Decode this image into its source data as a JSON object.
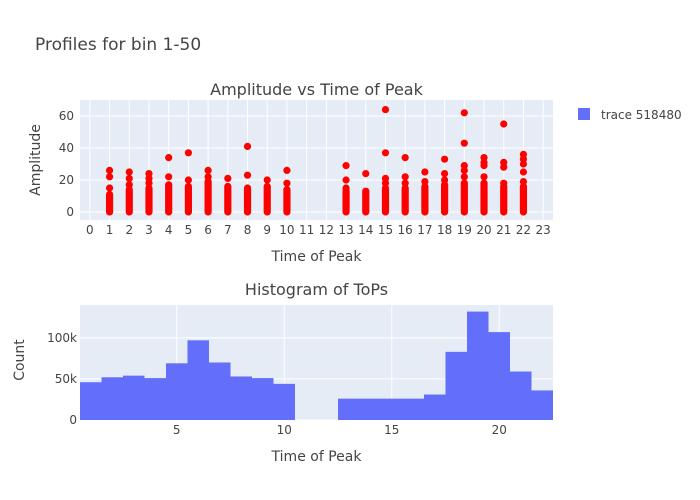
{
  "figure": {
    "title": "Profiles for bin 1-50",
    "legend": {
      "label": "trace 518480",
      "color": "#636efa",
      "placement": "top-right"
    }
  },
  "chart_data": [
    {
      "type": "scatter",
      "title": "Amplitude vs Time of Peak",
      "xlabel": "Time of Peak",
      "ylabel": "Amplitude",
      "xlim": [
        -0.5,
        23.5
      ],
      "ylim": [
        -5,
        70
      ],
      "xticks": [
        "0",
        "1",
        "2",
        "3",
        "4",
        "5",
        "6",
        "7",
        "8",
        "9",
        "10",
        "11",
        "12",
        "13",
        "14",
        "15",
        "16",
        "17",
        "18",
        "19",
        "20",
        "21",
        "22",
        "23"
      ],
      "yticks": [
        "0",
        "20",
        "40",
        "60"
      ],
      "grid": true,
      "marker_color": "#ff0000",
      "series": [
        {
          "name": "trace 518480",
          "columns": [
            {
              "x": 1,
              "min": 0,
              "dense_max": 11,
              "outliers": [
                15,
                22,
                26
              ]
            },
            {
              "x": 2,
              "min": 0,
              "dense_max": 14,
              "outliers": [
                17,
                21,
                25
              ]
            },
            {
              "x": 3,
              "min": 0,
              "dense_max": 15,
              "outliers": [
                18,
                21,
                24
              ]
            },
            {
              "x": 4,
              "min": 0,
              "dense_max": 17,
              "outliers": [
                22,
                34
              ]
            },
            {
              "x": 5,
              "min": 0,
              "dense_max": 16,
              "outliers": [
                20,
                37
              ]
            },
            {
              "x": 6,
              "min": 0,
              "dense_max": 19,
              "outliers": [
                22,
                26
              ]
            },
            {
              "x": 7,
              "min": 0,
              "dense_max": 16,
              "outliers": [
                21
              ]
            },
            {
              "x": 8,
              "min": 0,
              "dense_max": 15,
              "outliers": [
                23,
                41
              ]
            },
            {
              "x": 9,
              "min": 0,
              "dense_max": 16,
              "outliers": [
                20
              ]
            },
            {
              "x": 10,
              "min": 0,
              "dense_max": 14,
              "outliers": [
                18,
                26
              ]
            },
            {
              "x": 13,
              "min": 0,
              "dense_max": 13,
              "outliers": [
                15,
                20,
                29
              ]
            },
            {
              "x": 14,
              "min": 0,
              "dense_max": 13,
              "outliers": [
                24
              ]
            },
            {
              "x": 15,
              "min": 0,
              "dense_max": 15,
              "outliers": [
                18,
                21,
                37,
                64
              ]
            },
            {
              "x": 16,
              "min": 0,
              "dense_max": 15,
              "outliers": [
                18,
                22,
                34
              ]
            },
            {
              "x": 17,
              "min": 0,
              "dense_max": 16,
              "outliers": [
                19,
                25
              ]
            },
            {
              "x": 18,
              "min": 0,
              "dense_max": 17,
              "outliers": [
                20,
                24,
                33
              ]
            },
            {
              "x": 19,
              "min": 0,
              "dense_max": 18,
              "outliers": [
                22,
                26,
                29,
                43,
                62
              ]
            },
            {
              "x": 20,
              "min": 0,
              "dense_max": 18,
              "outliers": [
                22,
                29,
                31,
                34
              ]
            },
            {
              "x": 21,
              "min": 0,
              "dense_max": 16,
              "outliers": [
                18,
                28,
                31,
                55
              ]
            },
            {
              "x": 22,
              "min": 0,
              "dense_max": 16,
              "outliers": [
                19,
                25,
                30,
                33,
                36
              ]
            }
          ]
        }
      ]
    },
    {
      "type": "bar",
      "title": "Histogram of ToPs",
      "xlabel": "Time of Peak",
      "ylabel": "Count",
      "xlim": [
        0.5,
        22.5
      ],
      "ylim": [
        0,
        140000
      ],
      "xticks": [
        "5",
        "10",
        "15",
        "20"
      ],
      "yticks": [
        "0",
        "50k",
        "100k"
      ],
      "grid": true,
      "bar_color": "#636efa",
      "bin_width": 1,
      "series": [
        {
          "name": "trace 518480",
          "bins": [
            {
              "center": 1,
              "count": 46000
            },
            {
              "center": 2,
              "count": 52000
            },
            {
              "center": 3,
              "count": 54000
            },
            {
              "center": 4,
              "count": 51000
            },
            {
              "center": 5,
              "count": 69000
            },
            {
              "center": 6,
              "count": 97000
            },
            {
              "center": 7,
              "count": 70000
            },
            {
              "center": 8,
              "count": 53000
            },
            {
              "center": 9,
              "count": 51000
            },
            {
              "center": 10,
              "count": 44000
            },
            {
              "center": 13,
              "count": 26000
            },
            {
              "center": 14,
              "count": 26000
            },
            {
              "center": 15,
              "count": 26000
            },
            {
              "center": 16,
              "count": 26000
            },
            {
              "center": 17,
              "count": 31000
            },
            {
              "center": 18,
              "count": 83000
            },
            {
              "center": 19,
              "count": 132000
            },
            {
              "center": 20,
              "count": 107000
            },
            {
              "center": 21,
              "count": 59000
            },
            {
              "center": 22,
              "count": 36000
            }
          ]
        }
      ]
    }
  ]
}
